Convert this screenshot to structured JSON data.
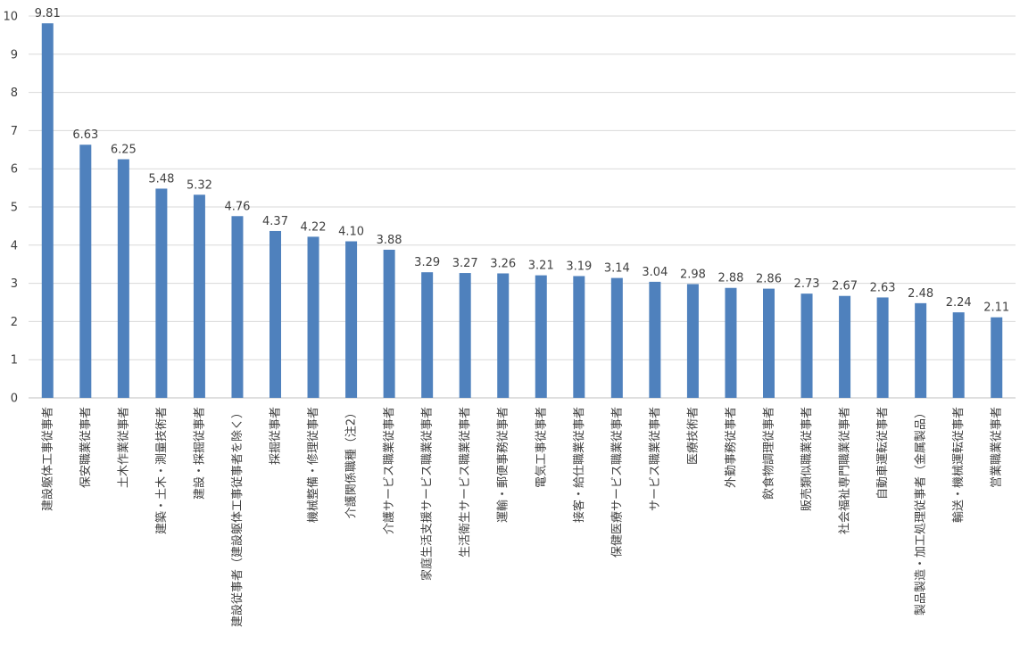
{
  "chart_data": {
    "type": "bar",
    "title": "",
    "xlabel": "",
    "ylabel": "",
    "ylim": [
      0,
      10
    ],
    "yticks": [
      0,
      1,
      2,
      3,
      4,
      5,
      6,
      7,
      8,
      9,
      10
    ],
    "grid": true,
    "legend": "none",
    "bar_color": "#4f81bd",
    "categories": [
      "建設躯体工事従事者",
      "保安職業従事者",
      "土木作業従事者",
      "建築・土木・測量技術者",
      "建設・採掘従事者",
      "建設従事者（建設躯体工事従事者を除く）",
      "採掘従事者",
      "機械整備・修理従事者",
      "介護関係職種（注2）",
      "介護サービス職業従事者",
      "家庭生活支援サービス職業従事者",
      "生活衛生サービス職業従事者",
      "運輸・郵便事務従事者",
      "電気工事従事者",
      "接客・給仕職業従事者",
      "保健医療サービス職業従事者",
      "サービス職業従事者",
      "医療技術者",
      "外勤事務従事者",
      "飲食物調理従事者",
      "販売類似職業従事者",
      "社会福祉専門職業従事者",
      "自動車運転従事者",
      "製品製造・加工処理従事者（金属製品）",
      "輸送・機械運転従事者",
      "営業職業従事者"
    ],
    "values": [
      9.81,
      6.63,
      6.25,
      5.48,
      5.32,
      4.76,
      4.37,
      4.22,
      4.1,
      3.88,
      3.29,
      3.27,
      3.26,
      3.21,
      3.19,
      3.14,
      3.04,
      2.98,
      2.88,
      2.86,
      2.73,
      2.67,
      2.63,
      2.48,
      2.24,
      2.11
    ],
    "value_labels": [
      "9.81",
      "6.63",
      "6.25",
      "5.48",
      "5.32",
      "4.76",
      "4.37",
      "4.22",
      "4.10",
      "3.88",
      "3.29",
      "3.27",
      "3.26",
      "3.21",
      "3.19",
      "3.14",
      "3.04",
      "2.98",
      "2.88",
      "2.86",
      "2.73",
      "2.67",
      "2.63",
      "2.48",
      "2.24",
      "2.11"
    ]
  }
}
